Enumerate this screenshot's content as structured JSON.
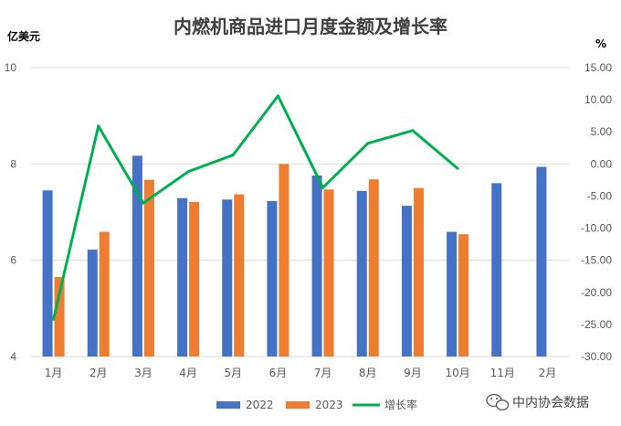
{
  "chart_data": {
    "type": "bar",
    "title": "内燃机商品进口月度金额及增长率",
    "left_axis_unit": "亿美元",
    "right_axis_unit": "%",
    "categories": [
      "1月",
      "2月",
      "3月",
      "4月",
      "5月",
      "6月",
      "7月",
      "8月",
      "9月",
      "10月",
      "11月",
      "2月"
    ],
    "ylim_left": [
      4,
      10
    ],
    "yticks_left": [
      "4",
      "6",
      "8",
      "10"
    ],
    "ylim_right": [
      -30,
      15
    ],
    "yticks_right": [
      "15.00",
      "10.00",
      "5.00",
      "0.00",
      "-5.00",
      "-10.00",
      "-15.00",
      "-20.00",
      "-25.00",
      "-30.00"
    ],
    "series": [
      {
        "name": "2022",
        "type": "bar",
        "axis": "left",
        "color": "#4472C4",
        "values": [
          7.45,
          6.22,
          8.17,
          7.29,
          7.26,
          7.23,
          7.76,
          7.44,
          7.13,
          6.59,
          7.6,
          7.94
        ]
      },
      {
        "name": "2023",
        "type": "bar",
        "axis": "left",
        "color": "#ED7D31",
        "values": [
          5.65,
          6.59,
          7.67,
          7.21,
          7.37,
          8.0,
          7.47,
          7.68,
          7.5,
          6.54,
          null,
          null
        ]
      },
      {
        "name": "增长率",
        "type": "line",
        "axis": "right",
        "color": "#00B050",
        "values": [
          -24.2,
          5.9,
          -6.1,
          -1.2,
          1.4,
          10.6,
          -3.7,
          3.2,
          5.2,
          -0.7,
          null,
          null
        ]
      }
    ],
    "legend_position": "bottom",
    "grid": "horizontal"
  },
  "watermark": {
    "text": "中内协会数据",
    "icon": "wechat-icon"
  }
}
